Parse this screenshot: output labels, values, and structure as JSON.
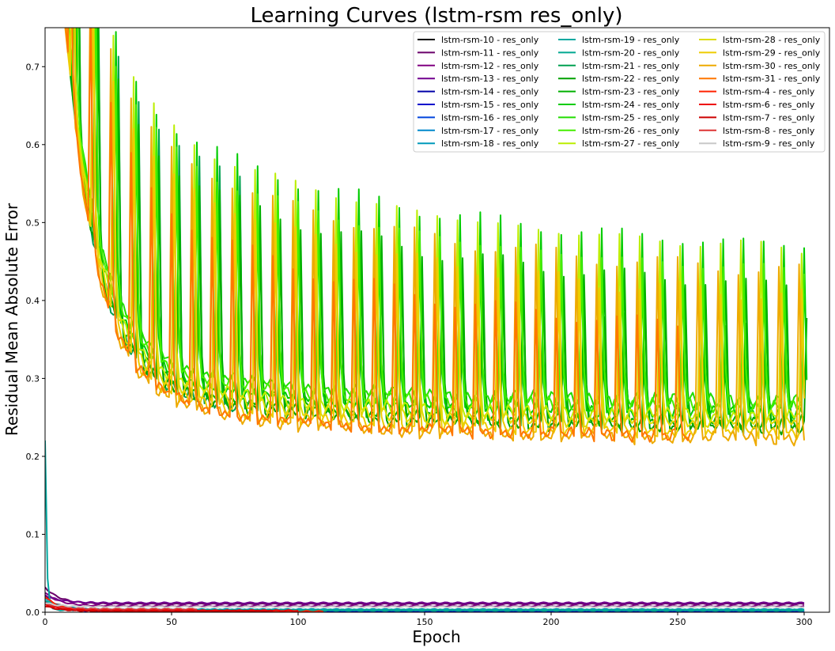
{
  "chart_data": {
    "type": "line",
    "title": "Learning Curves (lstm-rsm res_only)",
    "xlabel": "Epoch",
    "ylabel": "Residual Mean Absolute Error",
    "xlim": [
      0,
      310
    ],
    "ylim": [
      0,
      0.75
    ],
    "xticks": [
      "0",
      "50",
      "100",
      "150",
      "200",
      "250",
      "300"
    ],
    "yticks": [
      "0.0",
      "0.1",
      "0.2",
      "0.3",
      "0.4",
      "0.5",
      "0.6",
      "0.7"
    ],
    "grid": false,
    "legend_position": "top-right",
    "legend_columns": 3,
    "series": [
      {
        "name": "lstm-rsm-10 - res_only",
        "color": "#000000",
        "family": "low",
        "start": 0.02,
        "floor": 0.002,
        "end_epoch": 300
      },
      {
        "name": "lstm-rsm-11 - res_only",
        "color": "#6a006a",
        "family": "low",
        "start": 0.032,
        "floor": 0.0105,
        "end_epoch": 300
      },
      {
        "name": "lstm-rsm-12 - res_only",
        "color": "#800080",
        "family": "low",
        "start": 0.025,
        "floor": 0.008,
        "end_epoch": 300
      },
      {
        "name": "lstm-rsm-13 - res_only",
        "color": "#70008e",
        "family": "low",
        "start": 0.022,
        "floor": 0.012,
        "end_epoch": 300
      },
      {
        "name": "lstm-rsm-14 - res_only",
        "color": "#0000a8",
        "family": "low",
        "start": 0.015,
        "floor": 0.002,
        "end_epoch": 300
      },
      {
        "name": "lstm-rsm-15 - res_only",
        "color": "#0000cc",
        "family": "low",
        "start": 0.012,
        "floor": 0.0015,
        "end_epoch": 300
      },
      {
        "name": "lstm-rsm-16 - res_only",
        "color": "#0044dd",
        "family": "low",
        "start": 0.014,
        "floor": 0.002,
        "end_epoch": 300
      },
      {
        "name": "lstm-rsm-17 - res_only",
        "color": "#0088cc",
        "family": "low",
        "start": 0.012,
        "floor": 0.0035,
        "end_epoch": 300
      },
      {
        "name": "lstm-rsm-18 - res_only",
        "color": "#0099bb",
        "family": "low",
        "start": 0.018,
        "floor": 0.003,
        "end_epoch": 300
      },
      {
        "name": "lstm-rsm-19 - res_only",
        "color": "#00a8a0",
        "family": "low",
        "start": 0.22,
        "floor": 0.003,
        "end_epoch": 300
      },
      {
        "name": "lstm-rsm-20 - res_only",
        "color": "#00a890",
        "family": "low",
        "start": 0.015,
        "floor": 0.0025,
        "end_epoch": 300
      },
      {
        "name": "lstm-rsm-21 - res_only",
        "color": "#00a050",
        "family": "high",
        "start": 0.75,
        "floor": 0.236,
        "end_epoch": 80
      },
      {
        "name": "lstm-rsm-22 - res_only",
        "color": "#00a000",
        "family": "high",
        "start": 0.75,
        "floor": 0.236,
        "end_epoch": 301
      },
      {
        "name": "lstm-rsm-23 - res_only",
        "color": "#00b000",
        "family": "high",
        "start": 0.75,
        "floor": 0.243,
        "end_epoch": 300
      },
      {
        "name": "lstm-rsm-24 - res_only",
        "color": "#00cc00",
        "family": "high",
        "start": 0.75,
        "floor": 0.255,
        "end_epoch": 301
      },
      {
        "name": "lstm-rsm-25 - res_only",
        "color": "#22dd00",
        "family": "high",
        "start": 0.75,
        "floor": 0.27,
        "end_epoch": 300
      },
      {
        "name": "lstm-rsm-26 - res_only",
        "color": "#44ee00",
        "family": "high",
        "start": 0.75,
        "floor": 0.263,
        "end_epoch": 300
      },
      {
        "name": "lstm-rsm-27 - res_only",
        "color": "#bbee00",
        "family": "high",
        "start": 0.75,
        "floor": 0.251,
        "end_epoch": 300
      },
      {
        "name": "lstm-rsm-28 - res_only",
        "color": "#dddd00",
        "family": "high",
        "start": 0.75,
        "floor": 0.242,
        "end_epoch": 300
      },
      {
        "name": "lstm-rsm-29 - res_only",
        "color": "#eecc00",
        "family": "high",
        "start": 0.75,
        "floor": 0.23,
        "end_epoch": 300
      },
      {
        "name": "lstm-rsm-30 - res_only",
        "color": "#eeaa00",
        "family": "high",
        "start": 0.75,
        "floor": 0.222,
        "end_epoch": 300
      },
      {
        "name": "lstm-rsm-31 - res_only",
        "color": "#ff7700",
        "family": "high",
        "start": 0.75,
        "floor": 0.225,
        "end_epoch": 255
      },
      {
        "name": "lstm-rsm-4 - res_only",
        "color": "#ff2200",
        "family": "low",
        "start": 0.02,
        "floor": 0.001,
        "end_epoch": 110
      },
      {
        "name": "lstm-rsm-6 - res_only",
        "color": "#ee0000",
        "family": "low",
        "start": 0.01,
        "floor": 0.002,
        "end_epoch": 100
      },
      {
        "name": "lstm-rsm-7 - res_only",
        "color": "#cc0000",
        "family": "low",
        "start": 0.008,
        "floor": 0.0015,
        "end_epoch": 90
      },
      {
        "name": "lstm-rsm-8 - res_only",
        "color": "#dd3333",
        "family": "low",
        "start": 0.012,
        "floor": 0.004,
        "end_epoch": 60
      },
      {
        "name": "lstm-rsm-9 - res_only",
        "color": "#c8c8c8",
        "family": "low",
        "start": 0.012,
        "floor": 0.007,
        "end_epoch": 300
      }
    ]
  }
}
